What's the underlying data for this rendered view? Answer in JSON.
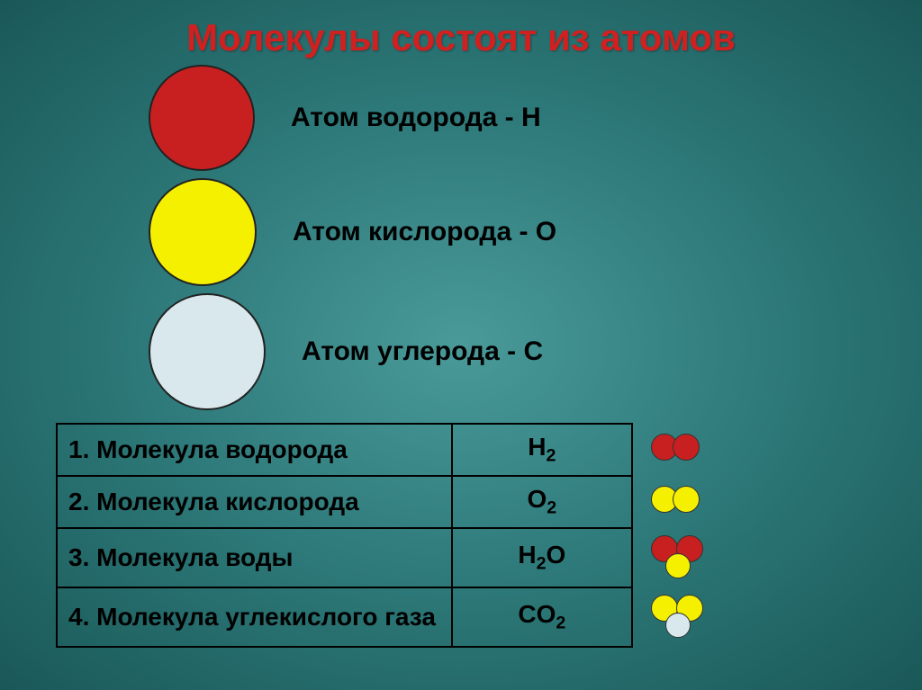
{
  "title": "Молекулы состоят из атомов",
  "colors": {
    "hydrogen": "#c82020",
    "oxygen": "#f5f000",
    "carbon": "#d8e8ec",
    "background_gradient_center": "#4a9a9a",
    "background_gradient_edge": "#1a5858",
    "title_color": "#d02020",
    "text_color": "#000000",
    "border_color": "#000000"
  },
  "legend": {
    "items": [
      {
        "label": "Атом водорода - Н",
        "atom": "hydrogen",
        "size": 118
      },
      {
        "label": "Атом кислорода - О",
        "atom": "oxygen",
        "size": 120
      },
      {
        "label": "Атом углерода - С",
        "atom": "carbon",
        "size": 130
      }
    ]
  },
  "table": {
    "rows": [
      {
        "name": "1. Молекула водорода",
        "formula_base": "H",
        "formula_sub": "2",
        "molecule": "H2"
      },
      {
        "name": "2. Молекула кислорода",
        "formula_base": "O",
        "formula_sub": "2",
        "molecule": "O2"
      },
      {
        "name": "3. Молекула воды",
        "formula_base": "H",
        "formula_sub": "2",
        "formula_tail": "O",
        "molecule": "H2O"
      },
      {
        "name": "4. Молекула углекислого газа",
        "formula_base": "CO",
        "formula_sub": "2",
        "molecule": "CO2"
      }
    ]
  },
  "molecule_render": {
    "small_atom_size": 30,
    "overlap": -6
  }
}
